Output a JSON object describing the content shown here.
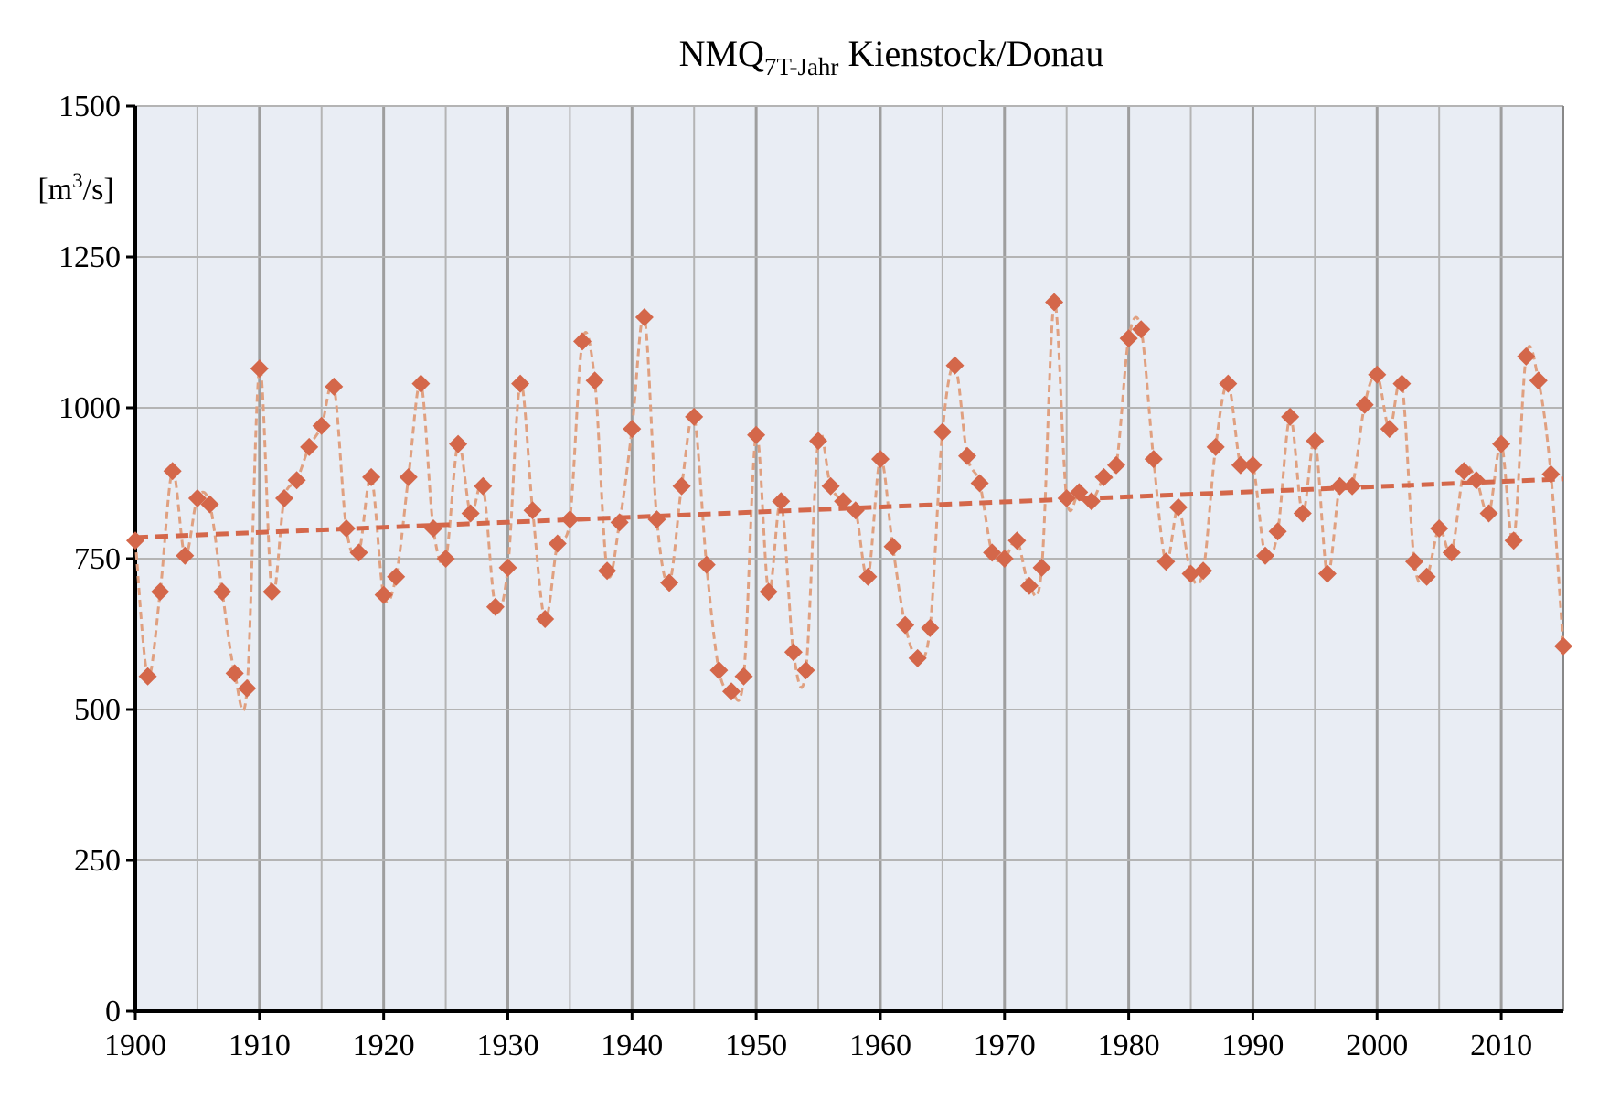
{
  "chart_data": {
    "type": "line",
    "title": "NMQ",
    "title_subscript": "7T-Jahr",
    "title_suffix": " Kienstock/Donau",
    "ylabel_prefix": "[m",
    "ylabel_sup": "3",
    "ylabel_suffix": "/s]",
    "xlim": [
      1900,
      2015
    ],
    "ylim": [
      0,
      1500
    ],
    "x_ticks": [
      1900,
      1910,
      1920,
      1930,
      1940,
      1950,
      1960,
      1970,
      1980,
      1990,
      2000,
      2010
    ],
    "y_ticks": [
      0,
      250,
      500,
      750,
      1000,
      1250,
      1500
    ],
    "x_grid_step": 5,
    "grid": true,
    "series": [
      {
        "kind": "observed",
        "color": "#D4674A",
        "marker": "diamond",
        "line_style": "dashed",
        "x": [
          1900,
          1901,
          1902,
          1903,
          1904,
          1905,
          1906,
          1907,
          1908,
          1909,
          1910,
          1911,
          1912,
          1913,
          1914,
          1915,
          1916,
          1917,
          1918,
          1919,
          1920,
          1921,
          1922,
          1923,
          1924,
          1925,
          1926,
          1927,
          1928,
          1929,
          1930,
          1931,
          1932,
          1933,
          1934,
          1935,
          1936,
          1937,
          1938,
          1939,
          1940,
          1941,
          1942,
          1943,
          1944,
          1945,
          1946,
          1947,
          1948,
          1949,
          1950,
          1951,
          1952,
          1953,
          1954,
          1955,
          1956,
          1957,
          1958,
          1959,
          1960,
          1961,
          1962,
          1963,
          1964,
          1965,
          1966,
          1967,
          1968,
          1969,
          1970,
          1971,
          1972,
          1973,
          1974,
          1975,
          1976,
          1977,
          1978,
          1979,
          1980,
          1981,
          1982,
          1983,
          1984,
          1985,
          1986,
          1987,
          1988,
          1989,
          1990,
          1991,
          1992,
          1993,
          1994,
          1995,
          1996,
          1997,
          1998,
          1999,
          2000,
          2001,
          2002,
          2003,
          2004,
          2005,
          2006,
          2007,
          2008,
          2009,
          2010,
          2011,
          2012,
          2013,
          2014,
          2015
        ],
        "y": [
          780,
          555,
          695,
          895,
          755,
          850,
          840,
          695,
          560,
          535,
          1065,
          695,
          850,
          880,
          935,
          970,
          1035,
          800,
          760,
          885,
          690,
          720,
          885,
          1040,
          800,
          750,
          940,
          825,
          870,
          670,
          735,
          1040,
          830,
          650,
          775,
          815,
          1110,
          1045,
          730,
          810,
          965,
          1150,
          815,
          710,
          870,
          985,
          740,
          565,
          530,
          555,
          955,
          695,
          845,
          595,
          565,
          945,
          870,
          845,
          830,
          720,
          915,
          770,
          640,
          585,
          635,
          960,
          1070,
          920,
          875,
          760,
          750,
          780,
          705,
          735,
          1175,
          850,
          860,
          845,
          885,
          905,
          1115,
          1130,
          915,
          745,
          835,
          725,
          730,
          935,
          1040,
          905,
          905,
          755,
          795,
          985,
          825,
          945,
          725,
          870,
          870,
          1005,
          1055,
          965,
          1040,
          745,
          720,
          800,
          760,
          895,
          880,
          825,
          940,
          780,
          1085,
          1045,
          890,
          605
        ]
      },
      {
        "kind": "trend",
        "color": "#D4674A",
        "line_style": "dashed",
        "x": [
          1900,
          2015
        ],
        "y": [
          785,
          882
        ]
      }
    ]
  }
}
